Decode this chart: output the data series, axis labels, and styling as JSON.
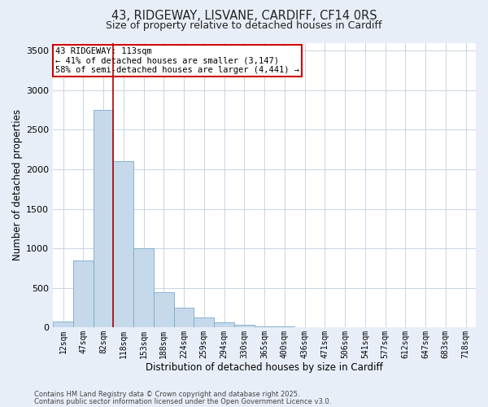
{
  "title_line1": "43, RIDGEWAY, LISVANE, CARDIFF, CF14 0RS",
  "title_line2": "Size of property relative to detached houses in Cardiff",
  "xlabel": "Distribution of detached houses by size in Cardiff",
  "ylabel": "Number of detached properties",
  "categories": [
    "12sqm",
    "47sqm",
    "82sqm",
    "118sqm",
    "153sqm",
    "188sqm",
    "224sqm",
    "259sqm",
    "294sqm",
    "330sqm",
    "365sqm",
    "400sqm",
    "436sqm",
    "471sqm",
    "506sqm",
    "541sqm",
    "577sqm",
    "612sqm",
    "647sqm",
    "683sqm",
    "718sqm"
  ],
  "values": [
    75,
    850,
    2750,
    2100,
    1000,
    450,
    250,
    130,
    65,
    30,
    18,
    10,
    6,
    4,
    3,
    2,
    1,
    1,
    1,
    0,
    0
  ],
  "bar_color": "#c6d9ea",
  "bar_edge_color": "#7aa8c8",
  "bar_linewidth": 0.6,
  "vline_x_index": 2,
  "vline_color": "#aa0000",
  "vline_linewidth": 1.2,
  "annotation_text": "43 RIDGEWAY: 113sqm\n← 41% of detached houses are smaller (3,147)\n58% of semi-detached houses are larger (4,441) →",
  "annotation_box_color": "#ffffff",
  "annotation_box_edge": "#cc0000",
  "grid_color": "#c8d4e4",
  "bg_color": "#e8eef8",
  "plot_bg_color": "#ffffff",
  "footer_line1": "Contains HM Land Registry data © Crown copyright and database right 2025.",
  "footer_line2": "Contains public sector information licensed under the Open Government Licence v3.0.",
  "ylim": [
    0,
    3600
  ],
  "yticks": [
    0,
    500,
    1000,
    1500,
    2000,
    2500,
    3000,
    3500
  ]
}
